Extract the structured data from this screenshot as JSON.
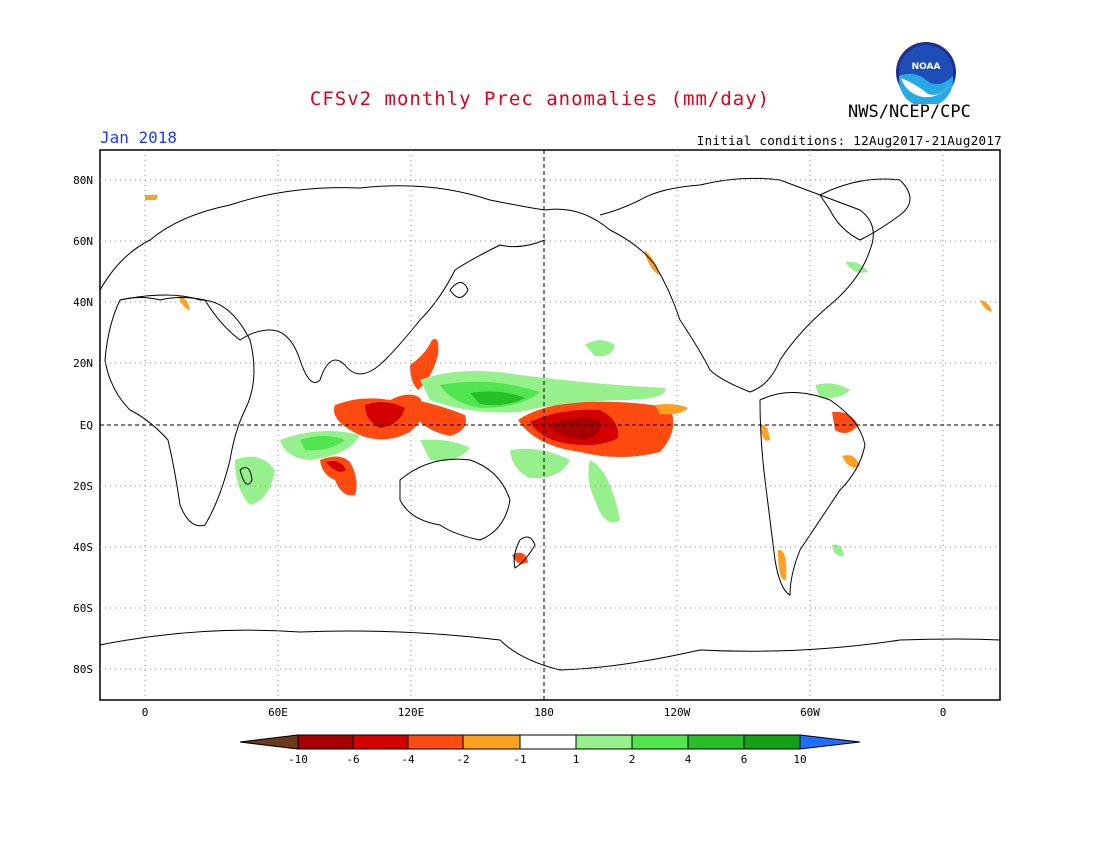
{
  "header": {
    "title": "CFSv2 monthly Prec anomalies (mm/day)",
    "agency": "NWS/NCEP/CPC",
    "period": "Jan 2018",
    "initial_conditions": "Initial conditions: 12Aug2017-21Aug2017",
    "logo_text": "NOAA"
  },
  "map": {
    "lat_labels": [
      "80N",
      "60N",
      "40N",
      "20N",
      "EQ",
      "20S",
      "40S",
      "60S",
      "80S"
    ],
    "lon_labels": [
      "0",
      "60E",
      "120E",
      "180",
      "120W",
      "60W",
      "0"
    ]
  },
  "legend": {
    "tick_labels": [
      "-10",
      "-6",
      "-4",
      "-2",
      "-1",
      "1",
      "2",
      "4",
      "6",
      "10"
    ],
    "colors": [
      "#6b3a1a",
      "#a80000",
      "#d40000",
      "#ff4a10",
      "#ffa020",
      "#ffffff",
      "#96f08c",
      "#50e650",
      "#28be28",
      "#14a014",
      "#1e6eff"
    ]
  }
}
